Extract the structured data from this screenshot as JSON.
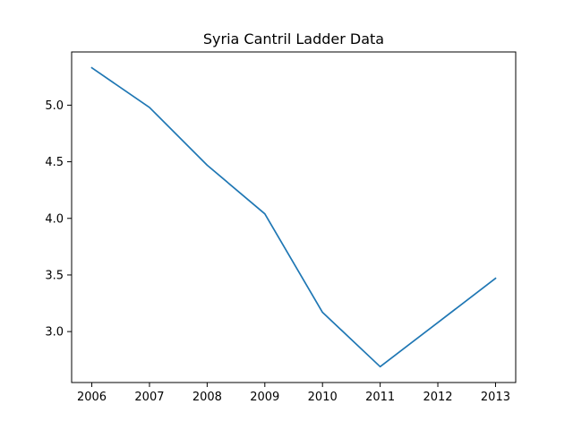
{
  "chart_data": {
    "type": "line",
    "title": "Syria Cantril Ladder Data",
    "xlabel": "",
    "ylabel": "",
    "x": [
      2006,
      2007,
      2008,
      2009,
      2010,
      2011,
      2012,
      2013
    ],
    "series": [
      {
        "values": [
          5.33,
          4.98,
          4.47,
          4.04,
          3.17,
          2.69,
          3.08,
          3.47
        ],
        "color": "#1f77b4"
      }
    ],
    "xticks": [
      "2006",
      "2007",
      "2008",
      "2009",
      "2010",
      "2011",
      "2012",
      "2013"
    ],
    "yticks": [
      "3.0",
      "3.5",
      "4.0",
      "4.5",
      "5.0"
    ],
    "xlim": [
      2005.65,
      2013.35
    ],
    "ylim": [
      2.55,
      5.47
    ],
    "grid": false,
    "legend": "none"
  }
}
